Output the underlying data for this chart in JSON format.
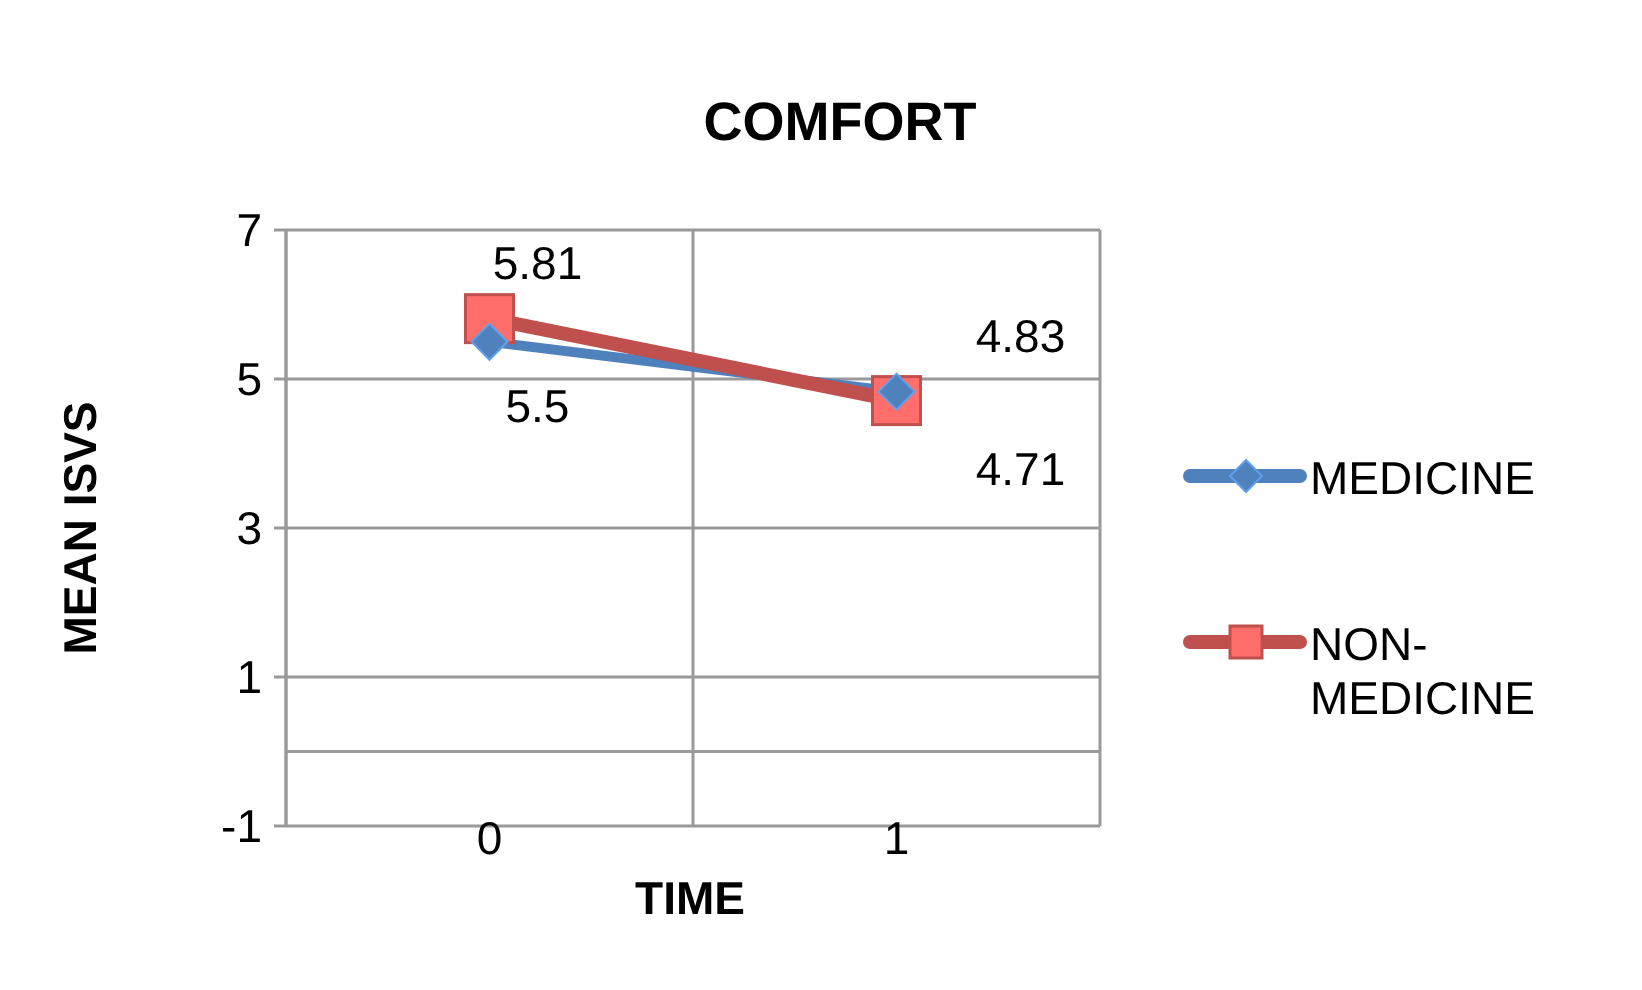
{
  "chart_data": {
    "type": "line",
    "title": "COMFORT",
    "xlabel": "TIME",
    "ylabel": "MEAN ISVS",
    "categories": [
      "0",
      "1"
    ],
    "series": [
      {
        "name": "MEDICINE",
        "color": "#4f81bd",
        "values": [
          5.5,
          4.83
        ],
        "marker": "diamond"
      },
      {
        "name": "NON-MEDICINE",
        "color": "#c0504d",
        "values": [
          5.81,
          4.71
        ],
        "marker": "square"
      }
    ],
    "ylim": [
      -1,
      7
    ],
    "yticks": [
      -1,
      1,
      3,
      5,
      7
    ],
    "grid": true,
    "legend": "right",
    "data_labels": true,
    "ref_lines": [
      {
        "axis": "y",
        "value": 0,
        "color": "#999999"
      }
    ]
  }
}
